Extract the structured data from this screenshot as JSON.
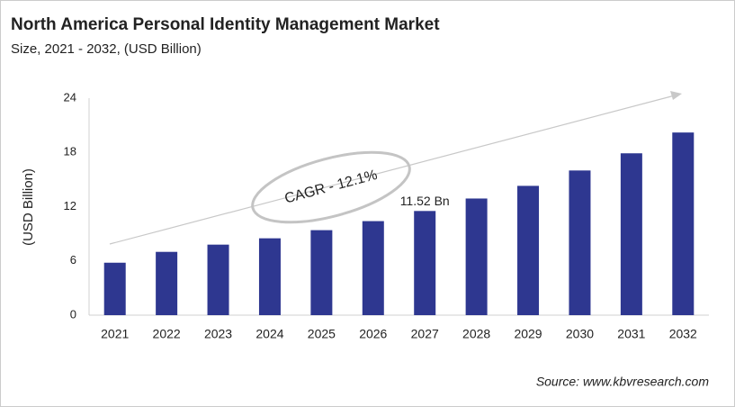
{
  "chart_data": {
    "type": "bar",
    "title": "North America Personal Identity Management Market",
    "subtitle": "Size, 2021 - 2032, (USD Billion)",
    "y_label": "(USD Billion)",
    "categories": [
      "2021",
      "2022",
      "2023",
      "2024",
      "2025",
      "2026",
      "2027",
      "2028",
      "2029",
      "2030",
      "2031",
      "2032"
    ],
    "values": [
      5.8,
      7.0,
      7.8,
      8.5,
      9.4,
      10.4,
      11.52,
      12.9,
      14.3,
      16.0,
      17.9,
      20.2
    ],
    "value_labels": [
      null,
      null,
      null,
      null,
      null,
      null,
      "11.52 Bn",
      null,
      null,
      null,
      null,
      null
    ],
    "color": "#2e3790",
    "ylim": [
      0,
      24
    ],
    "yticks": [
      0,
      6,
      12,
      18,
      24
    ],
    "grid": false,
    "annotation": "CAGR - 12.1%",
    "source": "Source: www.kbvresearch.com"
  }
}
